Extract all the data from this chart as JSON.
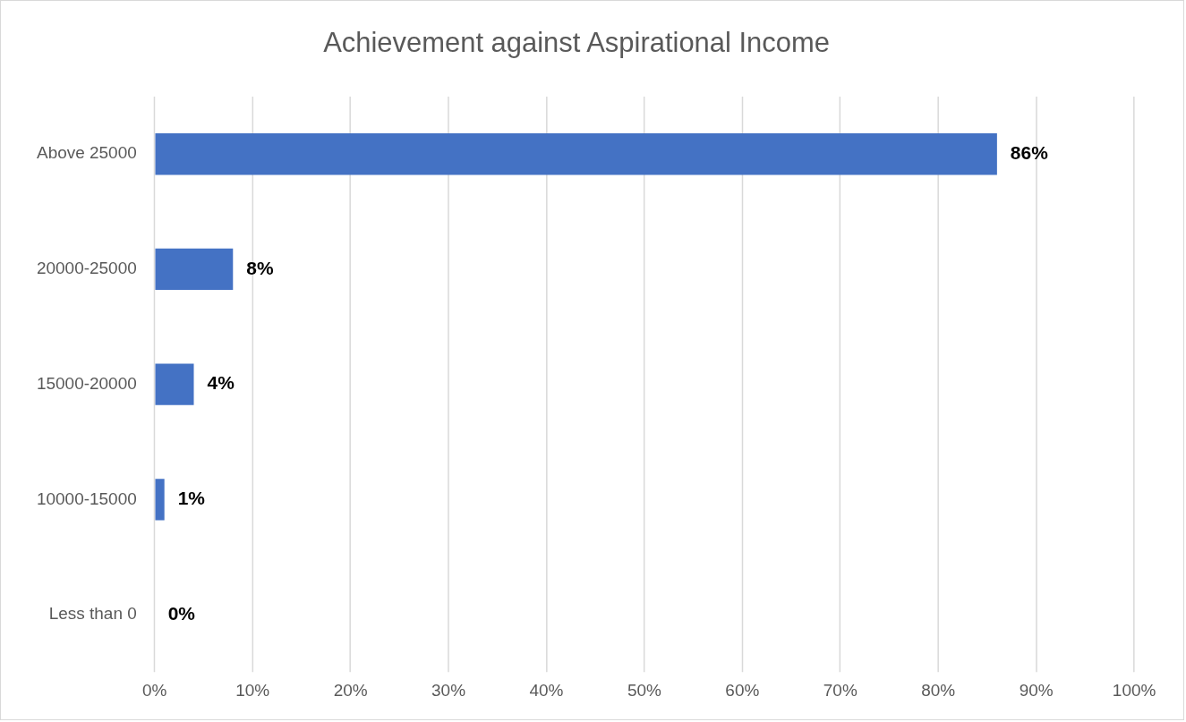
{
  "chart_data": {
    "type": "bar",
    "orientation": "horizontal",
    "title": "Achievement against Aspirational Income",
    "categories": [
      "Above 25000",
      "20000-25000",
      "15000-20000",
      "10000-15000",
      "Less than 0"
    ],
    "values": [
      86,
      8,
      4,
      1,
      0
    ],
    "value_labels": [
      "86%",
      "8%",
      "4%",
      "1%",
      "0%"
    ],
    "color": "#4472c4",
    "xlim": [
      0,
      100
    ],
    "xticks": [
      {
        "value": 0,
        "label": "0%"
      },
      {
        "value": 10,
        "label": "10%"
      },
      {
        "value": 20,
        "label": "20%"
      },
      {
        "value": 30,
        "label": "30%"
      },
      {
        "value": 40,
        "label": "40%"
      },
      {
        "value": 50,
        "label": "50%"
      },
      {
        "value": 60,
        "label": "60%"
      },
      {
        "value": 70,
        "label": "70%"
      },
      {
        "value": 80,
        "label": "80%"
      },
      {
        "value": 90,
        "label": "90%"
      },
      {
        "value": 100,
        "label": "100%"
      }
    ],
    "grid": "x",
    "legend": false
  }
}
